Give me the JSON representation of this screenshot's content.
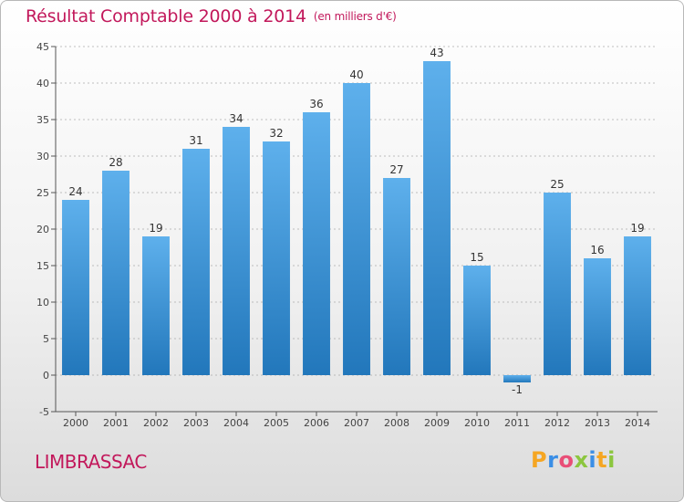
{
  "header": {
    "title": "Résultat Comptable 2000 à 2014",
    "subtitle": "(en milliers d'€)"
  },
  "footer": {
    "commune": "LIMBRASSAC",
    "brand_letters": [
      "P",
      "r",
      "o",
      "x",
      "i",
      "t",
      "i"
    ],
    "brand_colors": [
      "#f5a623",
      "#3a8ee6",
      "#e94e77",
      "#8cc63f",
      "#3a8ee6",
      "#f5a623",
      "#8cc63f"
    ]
  },
  "colors": {
    "bar_light": "#5eb0ec",
    "bar_dark": "#2277bb",
    "axis": "#555555",
    "grid": "#aaaaaa",
    "accent": "#c2185b"
  },
  "chart_data": {
    "type": "bar",
    "title": "Résultat Comptable 2000 à 2014",
    "subtitle": "(en milliers d'€)",
    "xlabel": "",
    "ylabel": "",
    "categories": [
      "2000",
      "2001",
      "2002",
      "2003",
      "2004",
      "2005",
      "2006",
      "2007",
      "2008",
      "2009",
      "2010",
      "2011",
      "2012",
      "2013",
      "2014"
    ],
    "values": [
      24,
      28,
      19,
      31,
      34,
      32,
      36,
      40,
      27,
      43,
      15,
      -1,
      25,
      16,
      19
    ],
    "data_labels": [
      "24",
      "28",
      "19",
      "31",
      "34",
      "32",
      "36",
      "40",
      "27",
      "43",
      "15",
      "-1",
      "25",
      "16",
      "19"
    ],
    "ylim": [
      -5,
      45
    ],
    "yticks": [
      -5,
      0,
      5,
      10,
      15,
      20,
      25,
      30,
      35,
      40,
      45
    ],
    "grid": "horizontal dashed",
    "legend": "none"
  }
}
